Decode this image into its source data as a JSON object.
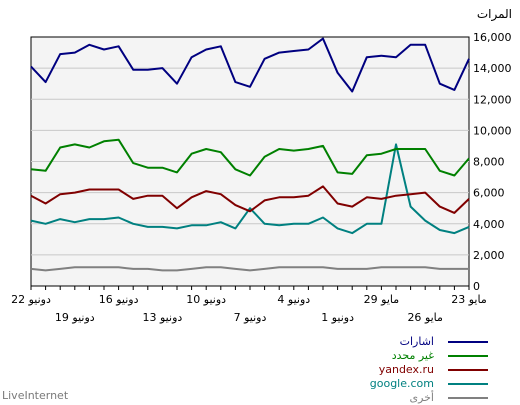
{
  "chart_data": {
    "type": "line",
    "ylabel": "المرات",
    "ylim": [
      0,
      16000
    ],
    "yticks": [
      "0",
      "2,000",
      "4,000",
      "6,000",
      "8,000",
      "10,000",
      "12,000",
      "14,000",
      "16,000"
    ],
    "grid": true,
    "x": [
      "22 دونيو",
      "21 دونيو",
      "20 دونيو",
      "19 دونيو",
      "18 دونيو",
      "17 دونيو",
      "16 دونيو",
      "15 دونيو",
      "14 دونيو",
      "13 دونيو",
      "12 دونيو",
      "11 دونيو",
      "10 دونيو",
      "9 دونيو",
      "8 دونيو",
      "7 دونيو",
      "6 دونيو",
      "5 دونيو",
      "4 دونيو",
      "3 دونيو",
      "2 دونيو",
      "1 دونيو",
      "31 مايو",
      "30 مايو",
      "29 مايو",
      "28 مايو",
      "27 مايو",
      "26 مايو",
      "25 مايو",
      "24 مايو",
      "23 مايو"
    ],
    "x_tick_labels_top": [
      {
        "index": 0,
        "label": "22 دونيو"
      },
      {
        "index": 6,
        "label": "16 دونيو"
      },
      {
        "index": 12,
        "label": "10 دونيو"
      },
      {
        "index": 18,
        "label": "4 دونيو"
      },
      {
        "index": 24,
        "label": "29 مايو"
      },
      {
        "index": 30,
        "label": "23 مايو"
      }
    ],
    "x_tick_labels_bottom": [
      {
        "index": 3,
        "label": "19 دونيو"
      },
      {
        "index": 9,
        "label": "13 دونيو"
      },
      {
        "index": 15,
        "label": "7 دونيو"
      },
      {
        "index": 21,
        "label": "1 دونيو"
      },
      {
        "index": 27,
        "label": "26 مايو"
      }
    ],
    "legend_position": "bottom-right",
    "series": [
      {
        "name": "اشارات",
        "color": "#000080",
        "values": [
          14100,
          13100,
          14900,
          15000,
          15500,
          15200,
          15400,
          13900,
          13900,
          14000,
          13000,
          14700,
          15200,
          15400,
          13100,
          12800,
          14600,
          15000,
          15100,
          15200,
          15900,
          13700,
          12500,
          14700,
          14800,
          14700,
          15500,
          15500,
          13000,
          12600,
          14600
        ]
      },
      {
        "name": "غير محدد",
        "color": "#008000",
        "values": [
          7500,
          7400,
          8900,
          9100,
          8900,
          9300,
          9400,
          7900,
          7600,
          7600,
          7300,
          8500,
          8800,
          8600,
          7500,
          7100,
          8300,
          8800,
          8700,
          8800,
          9000,
          7300,
          7200,
          8400,
          8500,
          8800,
          8800,
          8800,
          7400,
          7100,
          8200
        ]
      },
      {
        "name": "yandex.ru",
        "color": "#800000",
        "values": [
          5800,
          5300,
          5900,
          6000,
          6200,
          6200,
          6200,
          5600,
          5800,
          5800,
          5000,
          5700,
          6100,
          5900,
          5200,
          4800,
          5500,
          5700,
          5700,
          5800,
          6400,
          5300,
          5100,
          5700,
          5600,
          5800,
          5900,
          6000,
          5100,
          4700,
          5600
        ]
      },
      {
        "name": "google.com",
        "color": "#008080",
        "values": [
          4200,
          4000,
          4300,
          4100,
          4300,
          4300,
          4400,
          4000,
          3800,
          3800,
          3700,
          3900,
          3900,
          4100,
          3700,
          5000,
          4000,
          3900,
          4000,
          4000,
          4400,
          3700,
          3400,
          4000,
          4000,
          9100,
          5100,
          4200,
          3600,
          3400,
          3800
        ]
      },
      {
        "name": "أخرى",
        "color": "#808080",
        "values": [
          1100,
          1000,
          1100,
          1200,
          1200,
          1200,
          1200,
          1100,
          1100,
          1000,
          1000,
          1100,
          1200,
          1200,
          1100,
          1000,
          1100,
          1200,
          1200,
          1200,
          1200,
          1100,
          1100,
          1100,
          1200,
          1200,
          1200,
          1200,
          1100,
          1100,
          1100
        ]
      }
    ]
  },
  "footer": {
    "credit": "LiveInternet"
  }
}
